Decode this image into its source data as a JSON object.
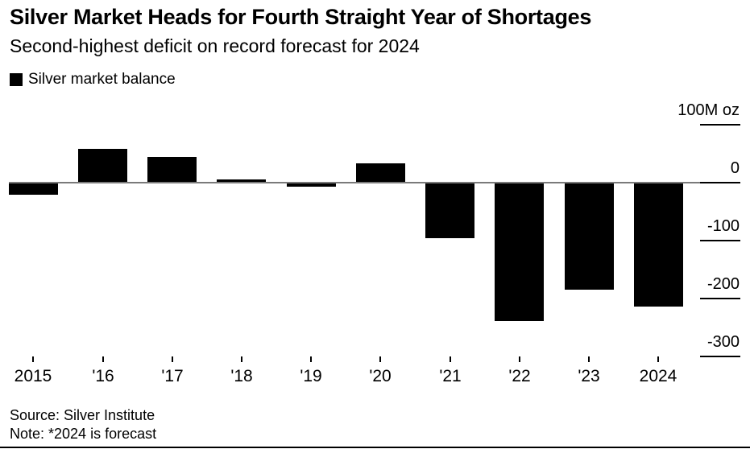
{
  "header": {
    "title": "Silver Market Heads for Fourth Straight Year of Shortages",
    "subtitle": "Second-highest deficit on record forecast for 2024"
  },
  "legend": {
    "label": "Silver market balance",
    "swatch_color": "#000000"
  },
  "chart_data": {
    "type": "bar",
    "title": "Silver Market Heads for Fourth Straight Year of Shortages",
    "subtitle": "Second-highest deficit on record forecast for 2024",
    "series_name": "Silver market balance",
    "categories": [
      "2015",
      "'16",
      "'17",
      "'18",
      "'19",
      "'20",
      "'21",
      "'22",
      "'23",
      "2024"
    ],
    "values": [
      -20,
      57,
      43,
      4,
      -5,
      32,
      -94,
      -238,
      -184,
      -213
    ],
    "xlabel": "",
    "ylabel": "M oz",
    "unit_label": "100M oz",
    "ylim": [
      -300,
      100
    ],
    "y_axis": {
      "tick_values": [
        100,
        0,
        -100,
        -200,
        -300
      ],
      "tick_labels": [
        "100M oz",
        "0",
        "-100",
        "-200",
        "-300"
      ],
      "side": "right"
    },
    "bar_color": "#000000",
    "zero_line_color": "#7a7a7a",
    "grid": "right-tick-segments-only",
    "legend_position": "top-left"
  },
  "footer": {
    "source": "Source: Silver Institute",
    "note": "Note: *2024 is forecast"
  }
}
